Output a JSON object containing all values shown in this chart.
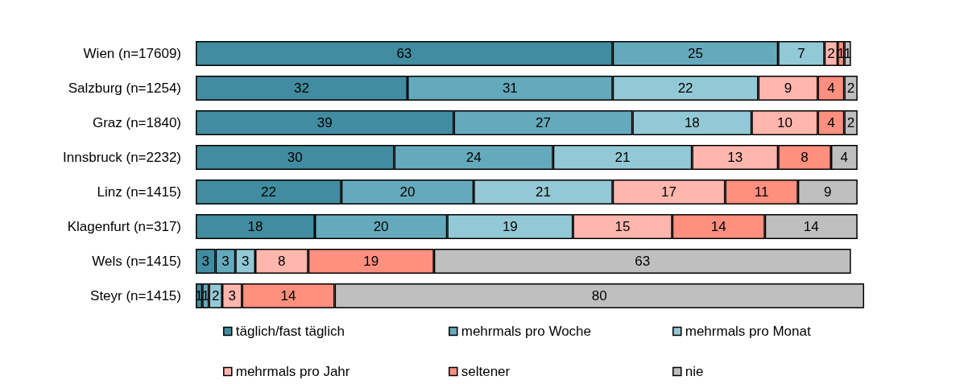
{
  "chart_data": {
    "type": "bar",
    "orientation": "horizontal",
    "stacked": true,
    "data_labels": true,
    "legend": "bottom",
    "tick_labels": "y",
    "categories": [
      "Wien (n=17609)",
      "Salzburg (n=1254)",
      "Graz (n=1840)",
      "Innsbruck (n=2232)",
      "Linz (n=1415)",
      "Klagenfurt (n=317)",
      "Wels (n=1415)",
      "Steyr (n=1415)"
    ],
    "series": [
      {
        "name": "täglich/fast täglich",
        "color": "#418ca0",
        "values": [
          63,
          32,
          39,
          30,
          22,
          18,
          3,
          1
        ]
      },
      {
        "name": "mehrmals pro Woche",
        "color": "#65aabc",
        "values": [
          25,
          31,
          27,
          24,
          20,
          20,
          3,
          1
        ]
      },
      {
        "name": "mehrmals pro Monat",
        "color": "#93c9d6",
        "values": [
          7,
          22,
          18,
          21,
          21,
          19,
          3,
          2
        ]
      },
      {
        "name": "mehrmals pro Jahr",
        "color": "#ffb6ad",
        "values": [
          2,
          9,
          10,
          13,
          17,
          15,
          8,
          3
        ]
      },
      {
        "name": "seltener",
        "color": "#ff8f7e",
        "values": [
          1,
          4,
          4,
          8,
          11,
          14,
          19,
          14
        ]
      },
      {
        "name": "nie",
        "color": "#bfbfbf",
        "values": [
          1,
          2,
          2,
          4,
          9,
          14,
          63,
          80
        ]
      }
    ]
  }
}
